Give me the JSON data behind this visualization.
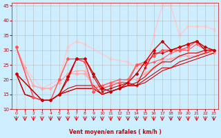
{
  "background_color": "#cceeff",
  "grid_color": "#bbbbbb",
  "xlabel": "Vent moyen/en rafales ( km/h )",
  "xlim": [
    -0.5,
    23.5
  ],
  "ylim": [
    10,
    46
  ],
  "yticks": [
    10,
    15,
    20,
    25,
    30,
    35,
    40,
    45
  ],
  "xticks": [
    0,
    1,
    2,
    3,
    4,
    5,
    6,
    7,
    8,
    9,
    10,
    11,
    12,
    13,
    14,
    15,
    16,
    17,
    18,
    19,
    20,
    21,
    22,
    23
  ],
  "series": [
    {
      "x": [
        0,
        1,
        2,
        3,
        4,
        5,
        6,
        7,
        8,
        9,
        10,
        11,
        12,
        13,
        14,
        15,
        16,
        17,
        18,
        19,
        20,
        21,
        22,
        23
      ],
      "y": [
        22,
        15,
        14,
        13,
        13,
        15,
        16,
        17,
        17,
        17,
        15,
        16,
        17,
        18,
        18,
        19,
        21,
        23,
        24,
        25,
        26,
        27,
        28,
        29
      ],
      "color": "#cc0000",
      "linewidth": 0.8,
      "marker": null,
      "markersize": 0,
      "zorder": 3
    },
    {
      "x": [
        0,
        1,
        2,
        3,
        4,
        5,
        6,
        7,
        8,
        9,
        10,
        11,
        12,
        13,
        14,
        15,
        16,
        17,
        18,
        19,
        20,
        21,
        22,
        23
      ],
      "y": [
        22,
        15,
        14,
        13,
        13,
        15,
        16,
        17,
        17,
        17,
        15,
        16,
        17,
        18,
        18,
        20,
        22,
        24,
        24,
        26,
        27,
        28,
        29,
        30
      ],
      "color": "#cc0000",
      "linewidth": 0.8,
      "marker": null,
      "markersize": 0,
      "zorder": 3
    },
    {
      "x": [
        0,
        1,
        2,
        3,
        4,
        5,
        6,
        7,
        8,
        9,
        10,
        11,
        12,
        13,
        14,
        15,
        16,
        17,
        18,
        19,
        20,
        21,
        22,
        23
      ],
      "y": [
        22,
        15,
        14,
        13,
        13,
        15,
        17,
        18,
        18,
        18,
        15,
        16,
        17,
        18,
        19,
        21,
        24,
        26,
        26,
        28,
        29,
        29,
        30,
        30
      ],
      "color": "#cc0000",
      "linewidth": 0.8,
      "marker": null,
      "markersize": 0,
      "zorder": 3
    },
    {
      "x": [
        0,
        3,
        4,
        5,
        6,
        7,
        8,
        9,
        10,
        11,
        12,
        13,
        14,
        15,
        16,
        17,
        18,
        19,
        20,
        21,
        22,
        23
      ],
      "y": [
        22,
        13,
        13,
        15,
        21,
        27,
        27,
        22,
        17,
        16,
        17,
        19,
        22,
        26,
        30,
        33,
        30,
        31,
        32,
        33,
        31,
        30
      ],
      "color": "#cc0000",
      "linewidth": 1.0,
      "marker": "D",
      "markersize": 2.0,
      "zorder": 5
    },
    {
      "x": [
        0,
        3,
        4,
        5,
        6,
        7,
        8,
        9,
        10,
        11,
        12,
        13,
        14,
        15,
        16,
        17,
        18,
        19,
        20,
        21,
        22,
        23
      ],
      "y": [
        22,
        13,
        13,
        15,
        20,
        27,
        27,
        21,
        16,
        17,
        18,
        19,
        18,
        24,
        29,
        29,
        30,
        31,
        32,
        33,
        30,
        30
      ],
      "color": "#cc0000",
      "linewidth": 0.8,
      "marker": "+",
      "markersize": 3.0,
      "zorder": 5
    },
    {
      "x": [
        0,
        2,
        3,
        4,
        5,
        6,
        7,
        8,
        9,
        10,
        11,
        12,
        13,
        14,
        15,
        16,
        17,
        18,
        19,
        20,
        21,
        22,
        23
      ],
      "y": [
        31,
        14,
        13,
        13,
        20,
        27,
        27,
        26,
        16,
        17,
        18,
        19,
        19,
        25,
        26,
        28,
        30,
        30,
        30,
        31,
        33,
        30,
        30
      ],
      "color": "#ff5555",
      "linewidth": 1.0,
      "marker": "D",
      "markersize": 2.0,
      "zorder": 4
    },
    {
      "x": [
        0,
        2,
        3,
        4,
        5,
        6,
        7,
        8,
        9,
        10,
        11,
        12,
        13,
        14,
        15,
        16,
        17,
        18,
        19,
        20,
        21,
        22,
        23
      ],
      "y": [
        31,
        14,
        13,
        13,
        15,
        21,
        27,
        26,
        17,
        18,
        19,
        20,
        20,
        25,
        25,
        26,
        27,
        29,
        30,
        30,
        32,
        30,
        30
      ],
      "color": "#ff5555",
      "linewidth": 0.8,
      "marker": "+",
      "markersize": 3.0,
      "zorder": 4
    },
    {
      "x": [
        0,
        1,
        2,
        3,
        4,
        5,
        6,
        7,
        8,
        9,
        10,
        11,
        12,
        13,
        14,
        15,
        16,
        17,
        18,
        19,
        20,
        21,
        22,
        23
      ],
      "y": [
        31,
        24,
        18,
        17,
        17,
        19,
        22,
        22,
        22,
        18,
        18,
        19,
        19,
        20,
        20,
        22,
        24,
        26,
        27,
        28,
        28,
        28,
        29,
        29
      ],
      "color": "#ffaaaa",
      "linewidth": 1.0,
      "marker": "D",
      "markersize": 2.0,
      "zorder": 2
    },
    {
      "x": [
        0,
        1,
        2,
        3,
        4,
        5,
        6,
        7,
        8,
        9,
        10,
        11,
        12,
        13,
        14,
        15,
        16,
        17,
        18,
        19,
        20,
        21,
        22,
        23
      ],
      "y": [
        31,
        24,
        18,
        17,
        17,
        19,
        22,
        23,
        23,
        18,
        18,
        19,
        20,
        20,
        20,
        22,
        24,
        27,
        27,
        28,
        29,
        29,
        29,
        29
      ],
      "color": "#ffaaaa",
      "linewidth": 0.8,
      "marker": "+",
      "markersize": 3.0,
      "zorder": 2
    },
    {
      "x": [
        0,
        1,
        3,
        5,
        6,
        7,
        8,
        11,
        13,
        14,
        15,
        16,
        17,
        18,
        19,
        20,
        21,
        22,
        23
      ],
      "y": [
        31,
        24,
        17,
        20,
        31,
        33,
        32,
        27,
        26,
        24,
        22,
        35,
        45,
        45,
        35,
        38,
        38,
        38,
        37
      ],
      "color": "#ffcccc",
      "linewidth": 1.0,
      "marker": "D",
      "markersize": 2.0,
      "zorder": 1
    },
    {
      "x": [
        0,
        1,
        3,
        5,
        6,
        7,
        8,
        11,
        13,
        14,
        15,
        16,
        17,
        18,
        19,
        20,
        21,
        22,
        23
      ],
      "y": [
        31,
        24,
        17,
        20,
        31,
        33,
        32,
        27,
        26,
        24,
        22,
        35,
        45,
        45,
        35,
        38,
        38,
        38,
        37
      ],
      "color": "#ffcccc",
      "linewidth": 0.8,
      "marker": "+",
      "markersize": 3.0,
      "zorder": 1
    }
  ],
  "arrow_color": "#cc0000",
  "tick_color": "#cc0000",
  "label_color": "#cc0000"
}
